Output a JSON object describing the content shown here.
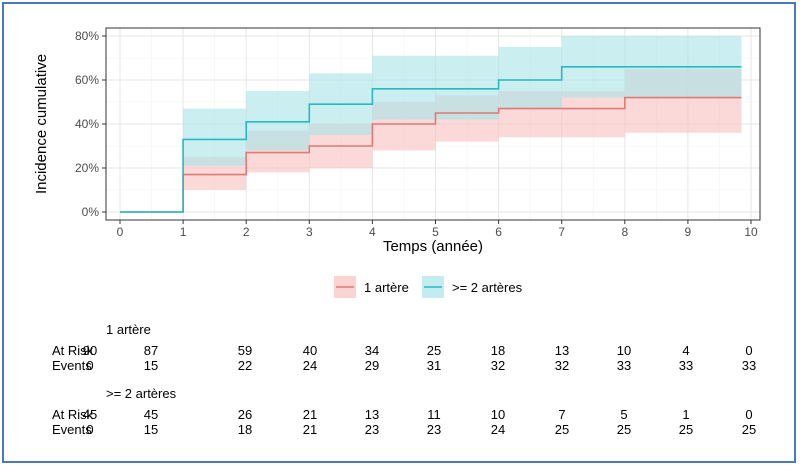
{
  "chart_data": {
    "type": "line",
    "xlabel": "Temps (année)",
    "ylabel": "Incidence cumulative",
    "xlim": [
      0,
      10
    ],
    "ylim": [
      0,
      0.8
    ],
    "x_ticks": [
      "0",
      "1",
      "2",
      "3",
      "4",
      "5",
      "6",
      "7",
      "8",
      "9",
      "10"
    ],
    "y_ticks": [
      "0%",
      "20%",
      "40%",
      "60%",
      "80%"
    ],
    "grid": true,
    "legend_position": "bottom",
    "series": [
      {
        "name": "1 artère",
        "color": "#e07a72",
        "band_color": "#f8c0c0",
        "x": [
          0,
          1,
          2,
          3,
          4,
          5,
          6,
          8,
          9.85
        ],
        "y": [
          0,
          0.17,
          0.27,
          0.3,
          0.4,
          0.45,
          0.47,
          0.52,
          0.52
        ],
        "lower": [
          0,
          0.1,
          0.18,
          0.2,
          0.28,
          0.32,
          0.34,
          0.36,
          0.36
        ],
        "upper": [
          0,
          0.25,
          0.37,
          0.4,
          0.5,
          0.53,
          0.55,
          0.65,
          0.65
        ]
      },
      {
        "name": ">= 2 artères",
        "color": "#26b9c0",
        "band_color": "#a8e4e8",
        "x": [
          0,
          1,
          2,
          3,
          4,
          6,
          7,
          9.85
        ],
        "y": [
          0,
          0.33,
          0.41,
          0.49,
          0.56,
          0.6,
          0.66,
          0.66
        ],
        "lower": [
          0,
          0.21,
          0.28,
          0.35,
          0.42,
          0.47,
          0.52,
          0.52
        ],
        "upper": [
          0,
          0.47,
          0.55,
          0.63,
          0.71,
          0.75,
          0.8,
          0.8
        ]
      }
    ],
    "risk_table": {
      "groups": [
        {
          "title": "1 artère",
          "rows": [
            {
              "label": "At Risk",
              "values": [
                "90",
                "87",
                "59",
                "40",
                "34",
                "25",
                "18",
                "13",
                "10",
                "4",
                "0"
              ]
            },
            {
              "label": "Events",
              "values": [
                "0",
                "15",
                "22",
                "24",
                "29",
                "31",
                "32",
                "32",
                "33",
                "33",
                "33"
              ]
            }
          ]
        },
        {
          "title": ">= 2 artères",
          "rows": [
            {
              "label": "At Risk",
              "values": [
                "45",
                "45",
                "26",
                "21",
                "13",
                "11",
                "10",
                "7",
                "5",
                "1",
                "0"
              ]
            },
            {
              "label": "Events",
              "values": [
                "0",
                "15",
                "18",
                "21",
                "23",
                "23",
                "24",
                "25",
                "25",
                "25",
                "25"
              ]
            }
          ]
        }
      ]
    }
  }
}
